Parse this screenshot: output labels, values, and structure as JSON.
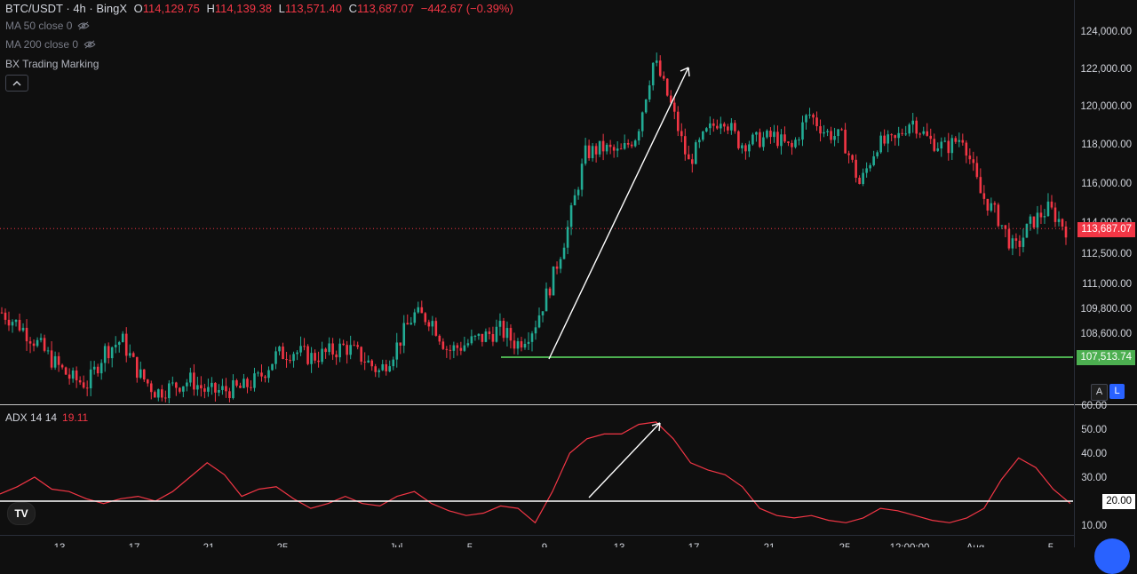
{
  "header": {
    "symbol": "BTC/USDT · 4h · BingX",
    "o_label": "O",
    "o": "114,129.75",
    "h_label": "H",
    "h": "114,139.38",
    "l_label": "L",
    "l": "113,571.40",
    "c_label": "C",
    "c": "113,687.07",
    "change": "−442.67 (−0.39%)"
  },
  "indicators": [
    {
      "label": "MA 50 close 0",
      "icon": "eye-off-icon"
    },
    {
      "label": "MA 200 close 0",
      "icon": "eye-off-icon"
    },
    {
      "label": "BX Trading Marking"
    }
  ],
  "collapse_icon": "chevron-up-icon",
  "price_axis": [
    "124,000.00",
    "122,000.00",
    "120,000.00",
    "118,000.00",
    "116,000.00",
    "114,000.00",
    "112,500.00",
    "111,000.00",
    "109,800.00",
    "108,600.00"
  ],
  "last_price_tag": "113,687.07",
  "horizontal_line_tag": "107,513.74",
  "scale_buttons": {
    "auto": "A",
    "log": "L"
  },
  "adx": {
    "label": "ADX 14 14",
    "value": "19.11",
    "axis": [
      "60.00",
      "50.00",
      "40.00",
      "30.00",
      "20.00",
      "10.00"
    ],
    "level_tag": "20.00"
  },
  "time_axis": [
    "13",
    "17",
    "21",
    "25",
    "Jul",
    "5",
    "9",
    "13",
    "17",
    "21",
    "25",
    "12:00:00",
    "Aug",
    "5"
  ],
  "colors": {
    "up": "#22ab94",
    "down": "#f23645",
    "level_line": "#4caf50",
    "adx_line": "#f23645"
  },
  "chart_data": [
    {
      "type": "candlestick",
      "title": "BTC/USDT · 4h · BingX",
      "xlabel": "",
      "ylabel": "",
      "ylim": [
        106000,
        124500
      ],
      "last_close": 113687.07,
      "horizontal_line": 107513.74,
      "anchors": [
        {
          "x": 0,
          "y": 109600
        },
        {
          "x": 1,
          "y": 109000
        },
        {
          "x": 2,
          "y": 108200
        },
        {
          "x": 3,
          "y": 107300
        },
        {
          "x": 4,
          "y": 106500
        },
        {
          "x": 5,
          "y": 106200
        },
        {
          "x": 6,
          "y": 107800
        },
        {
          "x": 7,
          "y": 108300
        },
        {
          "x": 8,
          "y": 106700
        },
        {
          "x": 9,
          "y": 105800
        },
        {
          "x": 10,
          "y": 106100
        },
        {
          "x": 11,
          "y": 106400
        },
        {
          "x": 12,
          "y": 105800
        },
        {
          "x": 13,
          "y": 105900
        },
        {
          "x": 14,
          "y": 106000
        },
        {
          "x": 15,
          "y": 106500
        },
        {
          "x": 16,
          "y": 107600
        },
        {
          "x": 17,
          "y": 107800
        },
        {
          "x": 18,
          "y": 107500
        },
        {
          "x": 19,
          "y": 107700
        },
        {
          "x": 20,
          "y": 108000
        },
        {
          "x": 21,
          "y": 107500
        },
        {
          "x": 22,
          "y": 106800
        },
        {
          "x": 23,
          "y": 108000
        },
        {
          "x": 24,
          "y": 109500
        },
        {
          "x": 25,
          "y": 109300
        },
        {
          "x": 26,
          "y": 107800
        },
        {
          "x": 27,
          "y": 108100
        },
        {
          "x": 28,
          "y": 108400
        },
        {
          "x": 29,
          "y": 108800
        },
        {
          "x": 30,
          "y": 108100
        },
        {
          "x": 31,
          "y": 108900
        },
        {
          "x": 32,
          "y": 111000
        },
        {
          "x": 33,
          "y": 113800
        },
        {
          "x": 34,
          "y": 117500
        },
        {
          "x": 35,
          "y": 117800
        },
        {
          "x": 36,
          "y": 117500
        },
        {
          "x": 37,
          "y": 118500
        },
        {
          "x": 38,
          "y": 122500
        },
        {
          "x": 39,
          "y": 120000
        },
        {
          "x": 40,
          "y": 117000
        },
        {
          "x": 41,
          "y": 118500
        },
        {
          "x": 42,
          "y": 119500
        },
        {
          "x": 43,
          "y": 118000
        },
        {
          "x": 44,
          "y": 118200
        },
        {
          "x": 45,
          "y": 118400
        },
        {
          "x": 46,
          "y": 117700
        },
        {
          "x": 47,
          "y": 119600
        },
        {
          "x": 48,
          "y": 118600
        },
        {
          "x": 49,
          "y": 118300
        },
        {
          "x": 50,
          "y": 115900
        },
        {
          "x": 51,
          "y": 118000
        },
        {
          "x": 52,
          "y": 118100
        },
        {
          "x": 53,
          "y": 119300
        },
        {
          "x": 54,
          "y": 118200
        },
        {
          "x": 55,
          "y": 117800
        },
        {
          "x": 56,
          "y": 118400
        },
        {
          "x": 57,
          "y": 115500
        },
        {
          "x": 58,
          "y": 114300
        },
        {
          "x": 59,
          "y": 112600
        },
        {
          "x": 60,
          "y": 114000
        },
        {
          "x": 61,
          "y": 114700
        },
        {
          "x": 62,
          "y": 113700
        }
      ]
    },
    {
      "type": "line",
      "title": "ADX 14 14",
      "xlabel": "",
      "ylabel": "",
      "ylim": [
        5,
        60
      ],
      "level": 20,
      "series": [
        {
          "name": "ADX 14 14",
          "values": [
            {
              "x": 0,
              "y": 23
            },
            {
              "x": 1,
              "y": 26
            },
            {
              "x": 2,
              "y": 30
            },
            {
              "x": 3,
              "y": 25
            },
            {
              "x": 4,
              "y": 24
            },
            {
              "x": 5,
              "y": 21
            },
            {
              "x": 6,
              "y": 19
            },
            {
              "x": 7,
              "y": 21
            },
            {
              "x": 8,
              "y": 22
            },
            {
              "x": 9,
              "y": 20
            },
            {
              "x": 10,
              "y": 24
            },
            {
              "x": 11,
              "y": 30
            },
            {
              "x": 12,
              "y": 36
            },
            {
              "x": 13,
              "y": 31
            },
            {
              "x": 14,
              "y": 22
            },
            {
              "x": 15,
              "y": 25
            },
            {
              "x": 16,
              "y": 26
            },
            {
              "x": 17,
              "y": 21
            },
            {
              "x": 18,
              "y": 17
            },
            {
              "x": 19,
              "y": 19
            },
            {
              "x": 20,
              "y": 22
            },
            {
              "x": 21,
              "y": 19
            },
            {
              "x": 22,
              "y": 18
            },
            {
              "x": 23,
              "y": 22
            },
            {
              "x": 24,
              "y": 24
            },
            {
              "x": 25,
              "y": 19
            },
            {
              "x": 26,
              "y": 16
            },
            {
              "x": 27,
              "y": 14
            },
            {
              "x": 28,
              "y": 15
            },
            {
              "x": 29,
              "y": 18
            },
            {
              "x": 30,
              "y": 17
            },
            {
              "x": 31,
              "y": 11
            },
            {
              "x": 32,
              "y": 24
            },
            {
              "x": 33,
              "y": 40
            },
            {
              "x": 34,
              "y": 46
            },
            {
              "x": 35,
              "y": 48
            },
            {
              "x": 36,
              "y": 48
            },
            {
              "x": 37,
              "y": 52
            },
            {
              "x": 38,
              "y": 53
            },
            {
              "x": 39,
              "y": 46
            },
            {
              "x": 40,
              "y": 36
            },
            {
              "x": 41,
              "y": 33
            },
            {
              "x": 42,
              "y": 31
            },
            {
              "x": 43,
              "y": 26
            },
            {
              "x": 44,
              "y": 17
            },
            {
              "x": 45,
              "y": 14
            },
            {
              "x": 46,
              "y": 13
            },
            {
              "x": 47,
              "y": 14
            },
            {
              "x": 48,
              "y": 12
            },
            {
              "x": 49,
              "y": 11
            },
            {
              "x": 50,
              "y": 13
            },
            {
              "x": 51,
              "y": 17
            },
            {
              "x": 52,
              "y": 16
            },
            {
              "x": 53,
              "y": 14
            },
            {
              "x": 54,
              "y": 12
            },
            {
              "x": 55,
              "y": 11
            },
            {
              "x": 56,
              "y": 13
            },
            {
              "x": 57,
              "y": 17
            },
            {
              "x": 58,
              "y": 29
            },
            {
              "x": 59,
              "y": 38
            },
            {
              "x": 60,
              "y": 34
            },
            {
              "x": 61,
              "y": 25
            },
            {
              "x": 62,
              "y": 19
            }
          ]
        }
      ]
    }
  ]
}
